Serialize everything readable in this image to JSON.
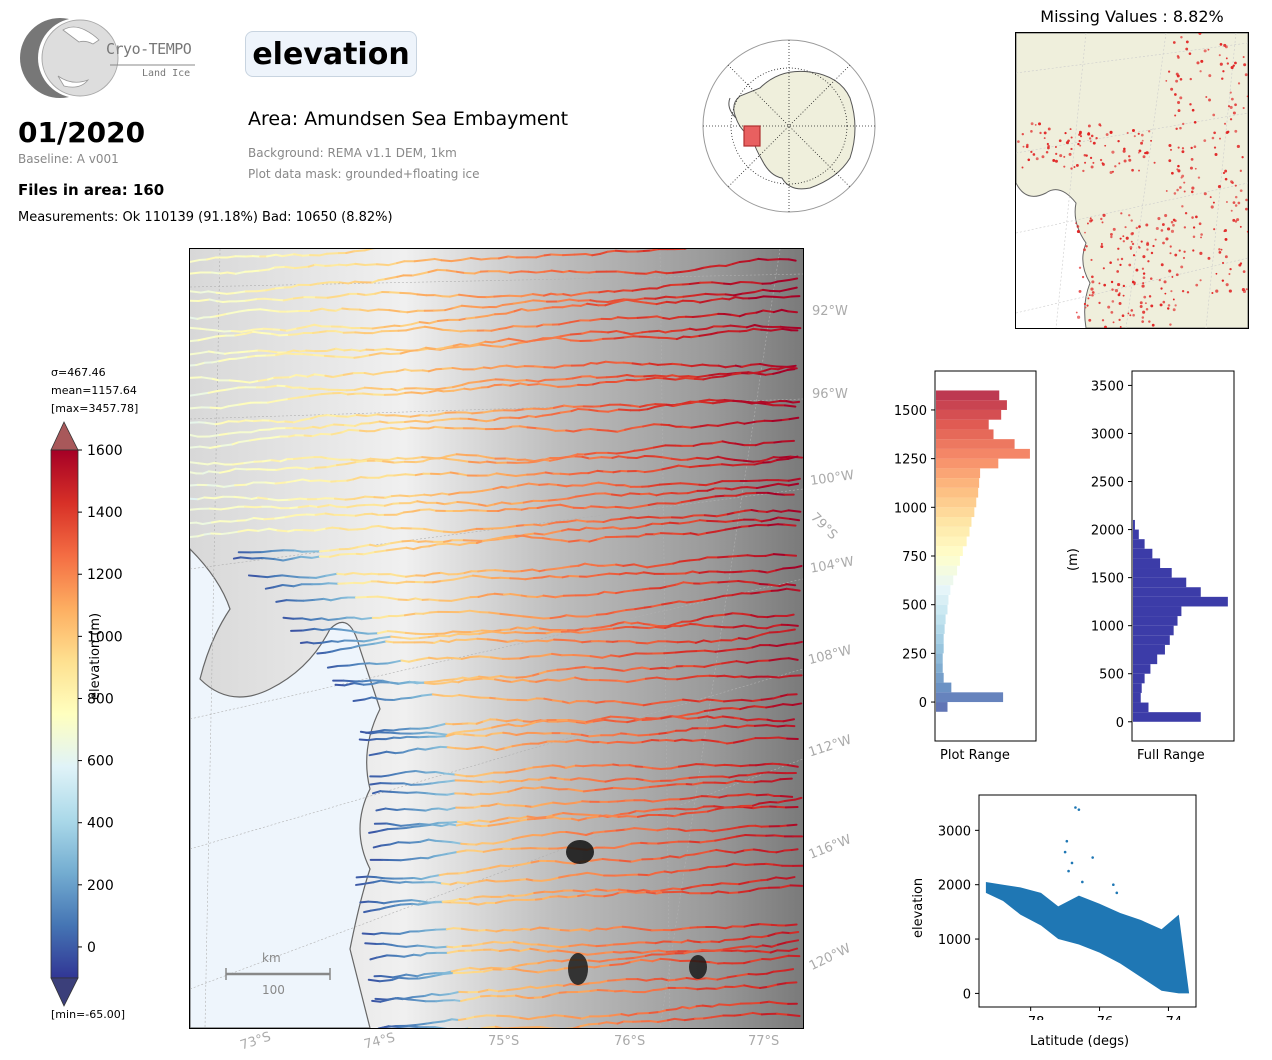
{
  "header": {
    "logo_name": "Cryo-TEMPO",
    "logo_sub": "Land Ice",
    "variable": "elevation",
    "date": "01/2020",
    "baseline": "Baseline: A v001",
    "files": "Files in area: 160",
    "measurements": "Measurements: Ok 110139 (91.18%) Bad: 10650 (8.82%)",
    "area": "Area: Amundsen Sea Embayment",
    "background": "Background: REMA v1.1 DEM, 1km",
    "mask": "Plot data mask: grounded+floating ice"
  },
  "missing_values": {
    "title": "Missing Values : 8.82%"
  },
  "colorbar": {
    "stats": [
      "σ=467.46",
      "mean=1157.64",
      "[max=3457.78]"
    ],
    "min_label": "[min=-65.00]",
    "label": "elevation (m)",
    "ticks": [
      "1600",
      "1400",
      "1200",
      "1000",
      "800",
      "600",
      "400",
      "200",
      "0"
    ],
    "range": [
      -100,
      1600
    ],
    "colors": [
      "#313695",
      "#4575b4",
      "#74add1",
      "#abd9e9",
      "#e0f3f8",
      "#ffffbf",
      "#fee090",
      "#fdae61",
      "#f46d43",
      "#d73027",
      "#a50026"
    ]
  },
  "map": {
    "lon_labels": [
      "92°W",
      "96°W",
      "100°W",
      "104°W",
      "108°W",
      "112°W",
      "116°W",
      "120°W"
    ],
    "lat_labels": [
      "73°S",
      "74°S",
      "75°S",
      "76°S",
      "77°S"
    ],
    "inner_lat_label": "79°S",
    "scale_unit": "km",
    "scale_value": "100"
  },
  "charts": {
    "plot_range": {
      "label": "Plot Range",
      "yticks": [
        "1500",
        "1250",
        "1000",
        "750",
        "500",
        "250",
        "0"
      ]
    },
    "full_range": {
      "label": "Full Range",
      "ylabel": "(m)",
      "yticks": [
        "3500",
        "3000",
        "2500",
        "2000",
        "1500",
        "1000",
        "500",
        "0"
      ]
    },
    "scatter": {
      "xlabel": "Latitude (degs)",
      "ylabel": "elevation",
      "xticks": [
        "−78",
        "−76",
        "−74"
      ],
      "yticks": [
        "3000",
        "2000",
        "1000",
        "0"
      ]
    }
  },
  "chart_data": [
    {
      "type": "bar",
      "orientation": "horizontal",
      "name": "Plot Range histogram",
      "ylim": [
        -200,
        1700
      ],
      "bins": [
        -50,
        0,
        50,
        100,
        150,
        200,
        250,
        300,
        350,
        400,
        450,
        500,
        550,
        600,
        650,
        700,
        750,
        800,
        850,
        900,
        950,
        1000,
        1050,
        1100,
        1150,
        1200,
        1250,
        1300,
        1350,
        1400,
        1450,
        1500,
        1550
      ],
      "counts": [
        12,
        70,
        16,
        8,
        7,
        7,
        8,
        8,
        9,
        10,
        12,
        13,
        15,
        18,
        22,
        25,
        28,
        32,
        35,
        37,
        40,
        42,
        44,
        45,
        46,
        65,
        98,
        82,
        60,
        55,
        68,
        74,
        66
      ]
    },
    {
      "type": "bar",
      "orientation": "horizontal",
      "name": "Full Range histogram",
      "ylim": [
        -200,
        3650
      ],
      "bins": [
        0,
        100,
        200,
        300,
        400,
        500,
        600,
        700,
        800,
        900,
        1000,
        1100,
        1200,
        1300,
        1400,
        1500,
        1600,
        1700,
        1800,
        1900,
        2000
      ],
      "counts": [
        70,
        16,
        8,
        9,
        12,
        18,
        25,
        33,
        38,
        42,
        46,
        50,
        98,
        70,
        55,
        40,
        28,
        20,
        12,
        6,
        2
      ]
    },
    {
      "type": "scatter",
      "xlabel": "Latitude (degs)",
      "ylabel": "elevation",
      "xlim": [
        -79.5,
        -73.2
      ],
      "ylim": [
        -250,
        3650
      ],
      "envelope_upper": [
        [
          -79.3,
          2050
        ],
        [
          -78.8,
          2000
        ],
        [
          -78.3,
          1950
        ],
        [
          -77.7,
          1850
        ],
        [
          -77.2,
          1600
        ],
        [
          -76.6,
          1800
        ],
        [
          -76.0,
          1650
        ],
        [
          -75.4,
          1480
        ],
        [
          -74.8,
          1350
        ],
        [
          -74.2,
          1180
        ],
        [
          -73.7,
          1450
        ]
      ],
      "envelope_lower": [
        [
          -79.3,
          1850
        ],
        [
          -78.8,
          1700
        ],
        [
          -78.3,
          1450
        ],
        [
          -77.7,
          1250
        ],
        [
          -77.2,
          1000
        ],
        [
          -76.6,
          900
        ],
        [
          -76.0,
          750
        ],
        [
          -75.4,
          550
        ],
        [
          -74.8,
          300
        ],
        [
          -74.2,
          50
        ],
        [
          -73.7,
          0
        ],
        [
          -73.4,
          0
        ]
      ],
      "outliers": [
        [
          -76.7,
          3420
        ],
        [
          -76.6,
          3380
        ],
        [
          -76.95,
          2800
        ],
        [
          -76.8,
          2400
        ],
        [
          -76.9,
          2250
        ],
        [
          -76.5,
          2050
        ],
        [
          -75.6,
          2000
        ],
        [
          -75.5,
          1850
        ],
        [
          -76.2,
          2500
        ],
        [
          -77.0,
          2600
        ]
      ]
    }
  ]
}
